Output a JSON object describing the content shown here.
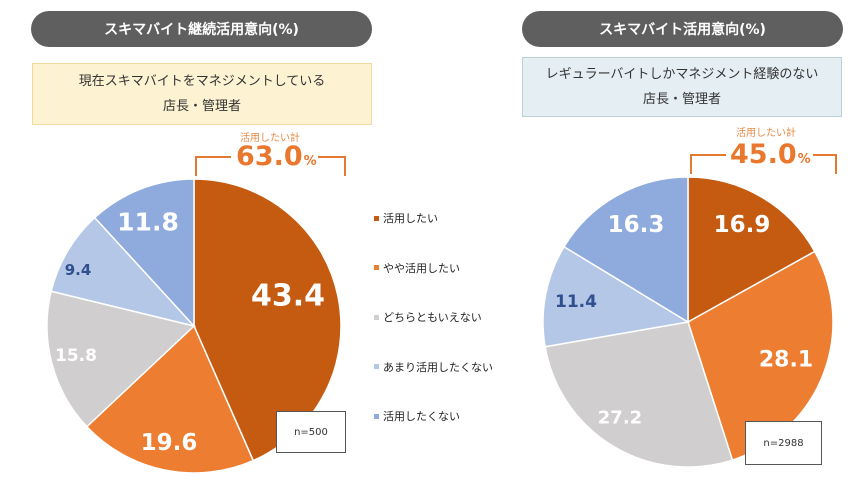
{
  "colors": {
    "katsuyou_shitai": "#c55a11",
    "yaya_katsuyou_shitai": "#ed7d31",
    "dochiratomo": "#d0cece",
    "amari": "#b4c7e7",
    "katsuyou_shitakunai": "#8faadc"
  },
  "legend": {
    "items": [
      "活用したい",
      "やや活用したい",
      "どちらともいえない",
      "あまり活用したくない",
      "活用したくない"
    ]
  },
  "chart_data": [
    {
      "type": "pie",
      "title": "スキマバイト継続活用意向(%)",
      "subtitle_lines": [
        "現在スキマバイトをマネジメントしている",
        "店長・管理者"
      ],
      "categories": [
        "活用したい",
        "やや活用したい",
        "どちらともいえない",
        "あまり活用したくない",
        "活用したくない"
      ],
      "values": [
        43.4,
        19.6,
        15.8,
        9.4,
        11.8
      ],
      "value_labels": [
        "43.4",
        "19.6",
        "15.8",
        "9.4",
        "11.8"
      ],
      "total_caption": "活用したい計",
      "total_value": "63.0",
      "total_unit": "%",
      "sample_size": "n=500"
    },
    {
      "type": "pie",
      "title": "スキマバイト活用意向(%)",
      "subtitle_lines": [
        "レギュラーバイトしかマネジメント経験のない",
        "店長・管理者"
      ],
      "categories": [
        "活用したい",
        "やや活用したい",
        "どちらともいえない",
        "あまり活用したくない",
        "活用したくない"
      ],
      "values": [
        16.9,
        28.1,
        27.2,
        11.4,
        16.3
      ],
      "value_labels": [
        "16.9",
        "28.1",
        "27.2",
        "11.4",
        "16.3"
      ],
      "total_caption": "活用したい計",
      "total_value": "45.0",
      "total_unit": "%",
      "sample_size": "n=2988"
    }
  ]
}
